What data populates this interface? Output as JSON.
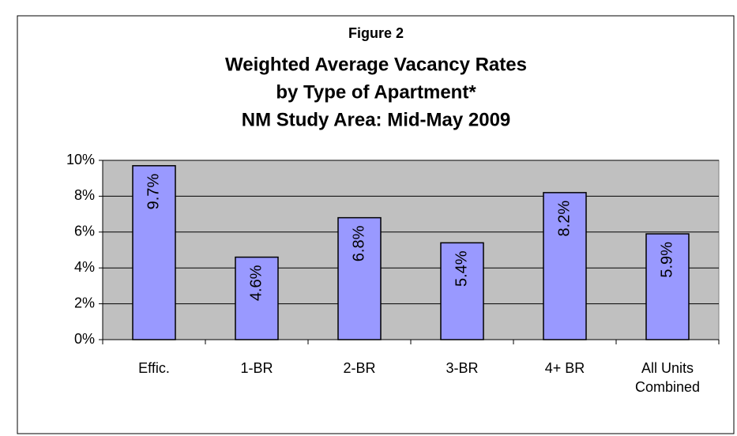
{
  "chart_data": {
    "type": "bar",
    "figure_label": "Figure 2",
    "title": [
      "Weighted Average Vacancy Rates",
      "by Type of Apartment*",
      "NM Study Area: Mid-May 2009"
    ],
    "categories": [
      "Effic.",
      "1-BR",
      "2-BR",
      "3-BR",
      "4+ BR",
      "All Units Combined"
    ],
    "values": [
      9.7,
      4.6,
      6.8,
      5.4,
      8.2,
      5.9
    ],
    "value_labels": [
      "9.7%",
      "4.6%",
      "6.8%",
      "5.4%",
      "8.2%",
      "5.9%"
    ],
    "color": "#9999ff",
    "ylim": [
      0,
      10
    ],
    "yticks": [
      {
        "value": 0,
        "label": "0%"
      },
      {
        "value": 2,
        "label": "2%"
      },
      {
        "value": 4,
        "label": "4%"
      },
      {
        "value": 6,
        "label": "6%"
      },
      {
        "value": 8,
        "label": "8%"
      },
      {
        "value": 10,
        "label": "10%"
      }
    ],
    "grid": true
  }
}
